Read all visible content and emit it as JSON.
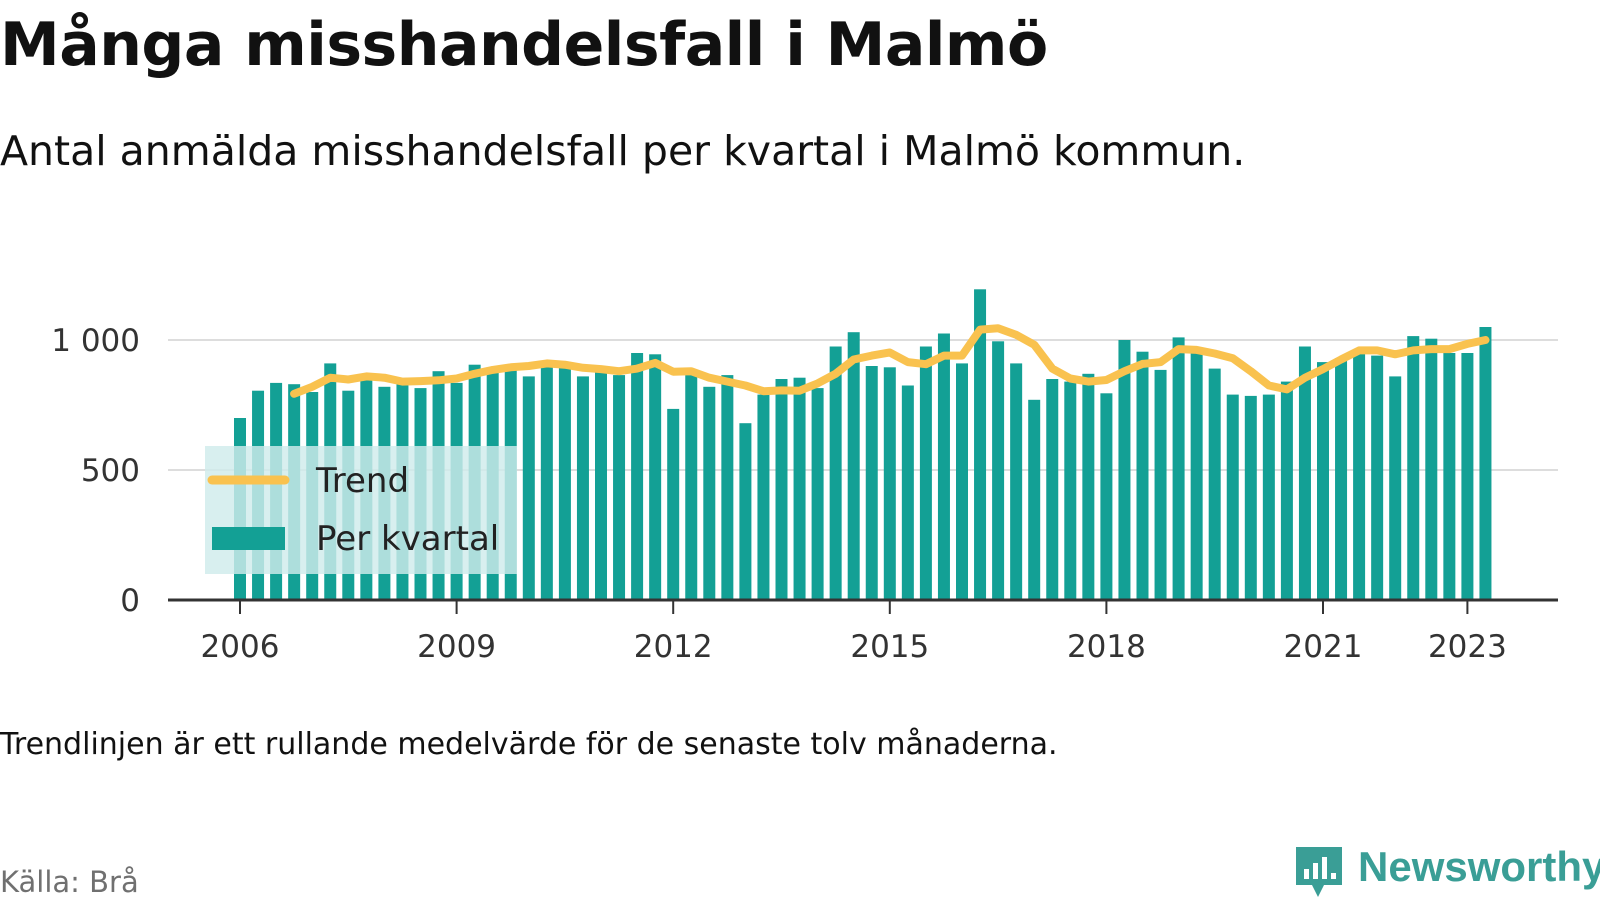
{
  "title": "Många misshandelsfall i Malmö",
  "subtitle": "Antal anmälda misshandelsfall per kvartal i Malmö kommun.",
  "note": "Trendlinjen är ett rullande medelvärde för de senaste tolv månaderna.",
  "source": "Källa: Brå",
  "brand": "Newsworthy",
  "colors": {
    "bar": "#13a095",
    "trend": "#f9c24f",
    "grid": "#dddddd",
    "axis": "#333333",
    "legend_bg": "#cfeceb"
  },
  "icons": {
    "brand_logo": "bar-chart-bubble-icon"
  },
  "chart_data": {
    "type": "bar",
    "x_start": "2006 Q1",
    "x_ticks": [
      "2006",
      "2009",
      "2012",
      "2015",
      "2018",
      "2021",
      "2023"
    ],
    "y_ticks": [
      "0",
      "500",
      "1 000"
    ],
    "ylim": [
      0,
      1200
    ],
    "grid": true,
    "legend_position": "bottom-left",
    "series": [
      {
        "name": "Per kvartal",
        "type": "bar",
        "values": [
          700,
          805,
          835,
          830,
          800,
          910,
          805,
          850,
          820,
          830,
          815,
          880,
          835,
          905,
          895,
          900,
          860,
          920,
          915,
          860,
          880,
          865,
          950,
          945,
          735,
          885,
          820,
          865,
          680,
          790,
          850,
          855,
          815,
          975,
          1030,
          900,
          895,
          825,
          975,
          1025,
          910,
          1195,
          995,
          910,
          770,
          850,
          840,
          870,
          795,
          1000,
          955,
          885,
          1010,
          960,
          890,
          790,
          785,
          790,
          840,
          975,
          915,
          930,
          965,
          940,
          860,
          1015,
          1005,
          950,
          950,
          1050
        ]
      },
      {
        "name": "Trend",
        "type": "line",
        "values": [
          null,
          null,
          null,
          793,
          820,
          855,
          848,
          860,
          855,
          840,
          842,
          845,
          852,
          870,
          885,
          895,
          900,
          910,
          905,
          893,
          888,
          880,
          890,
          912,
          878,
          880,
          855,
          840,
          825,
          803,
          806,
          805,
          833,
          870,
          925,
          940,
          952,
          915,
          907,
          940,
          940,
          1040,
          1045,
          1020,
          982,
          890,
          852,
          840,
          846,
          880,
          908,
          915,
          965,
          962,
          948,
          930,
          880,
          825,
          810,
          855,
          888,
          925,
          960,
          960,
          945,
          960,
          965,
          965,
          985,
          1000
        ]
      }
    ]
  }
}
